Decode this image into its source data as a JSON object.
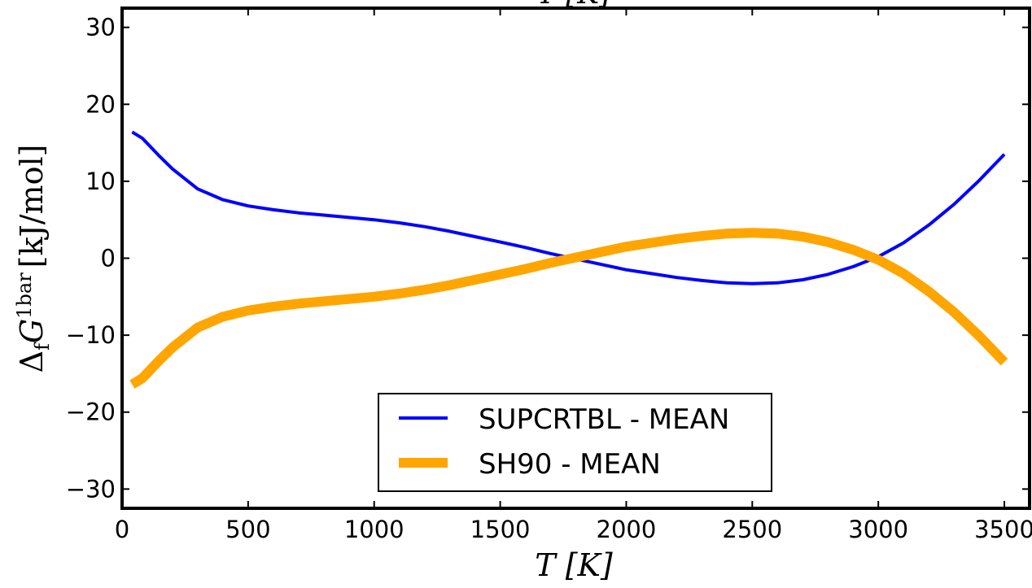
{
  "chart_data": {
    "type": "line",
    "title": "",
    "top_cut_label": "T [K]",
    "xlabel": "T [K]",
    "ylabel": {
      "delta": "Δ",
      "delta_sub": "f",
      "symbol": "G",
      "symbol_sup": "1bar",
      "units": "[kJ/mol]"
    },
    "xlim": [
      0,
      3600
    ],
    "ylim": [
      -32.5,
      32.5
    ],
    "xticks": [
      0,
      500,
      1000,
      1500,
      2000,
      2500,
      3000,
      3500
    ],
    "yticks": [
      -30,
      -20,
      -10,
      0,
      10,
      20,
      30
    ],
    "xtick_labels": [
      "0",
      "500",
      "1000",
      "1500",
      "2000",
      "2500",
      "3000",
      "3500"
    ],
    "ytick_labels": [
      "−30",
      "−20",
      "−10",
      "0",
      "10",
      "20",
      "30"
    ],
    "grid": false,
    "legend_position": "bottom-center",
    "series": [
      {
        "name": "SUPCRTBL - MEAN",
        "color": "#0000ff",
        "x": [
          40,
          80,
          150,
          200,
          300,
          400,
          500,
          600,
          700,
          800,
          900,
          1000,
          1100,
          1200,
          1300,
          1400,
          1500,
          1600,
          1700,
          1800,
          1900,
          2000,
          2100,
          2200,
          2300,
          2400,
          2500,
          2600,
          2700,
          2800,
          2900,
          3000,
          3100,
          3200,
          3300,
          3400,
          3500
        ],
        "y": [
          16.4,
          15.6,
          13.2,
          11.6,
          9.0,
          7.6,
          6.8,
          6.3,
          5.9,
          5.6,
          5.3,
          5.0,
          4.6,
          4.1,
          3.5,
          2.8,
          2.1,
          1.4,
          0.6,
          -0.1,
          -0.8,
          -1.5,
          -2.0,
          -2.5,
          -2.9,
          -3.2,
          -3.3,
          -3.2,
          -2.8,
          -2.1,
          -1.1,
          0.2,
          2.0,
          4.3,
          7.0,
          10.1,
          13.5
        ]
      },
      {
        "name": "SH90 - MEAN",
        "color": "#ffa500",
        "x": [
          40,
          80,
          150,
          200,
          300,
          400,
          500,
          600,
          700,
          800,
          900,
          1000,
          1100,
          1200,
          1300,
          1400,
          1500,
          1600,
          1700,
          1800,
          1900,
          2000,
          2100,
          2200,
          2300,
          2400,
          2500,
          2600,
          2700,
          2800,
          2900,
          3000,
          3100,
          3200,
          3300,
          3400,
          3500
        ],
        "y": [
          -16.4,
          -15.6,
          -13.2,
          -11.6,
          -9.0,
          -7.6,
          -6.8,
          -6.3,
          -5.9,
          -5.6,
          -5.3,
          -5.0,
          -4.6,
          -4.1,
          -3.5,
          -2.8,
          -2.1,
          -1.4,
          -0.6,
          0.1,
          0.8,
          1.5,
          2.0,
          2.5,
          2.9,
          3.2,
          3.3,
          3.2,
          2.8,
          2.1,
          1.1,
          -0.2,
          -2.0,
          -4.3,
          -7.0,
          -10.1,
          -13.5
        ]
      }
    ]
  }
}
